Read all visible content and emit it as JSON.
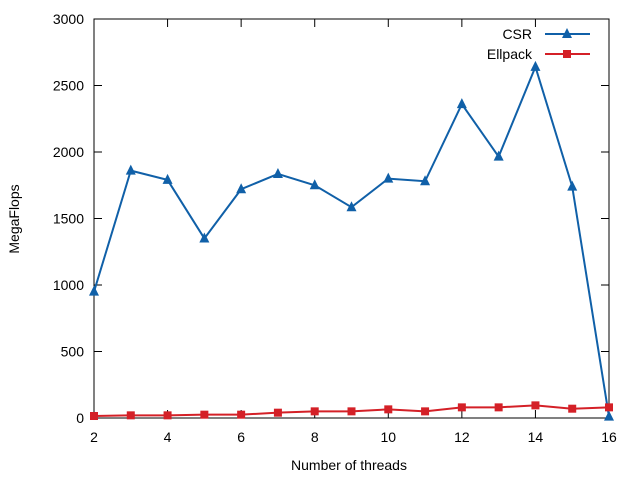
{
  "chart_data": {
    "type": "line",
    "title": "",
    "xlabel": "Number of threads",
    "ylabel": "MegaFlops",
    "xlim": [
      2,
      16
    ],
    "ylim": [
      0,
      3000
    ],
    "x_ticks": [
      2,
      4,
      6,
      8,
      10,
      12,
      14,
      16
    ],
    "y_ticks": [
      0,
      500,
      1000,
      1500,
      2000,
      2500,
      3000
    ],
    "grid": false,
    "legend_position": "top-right",
    "x": [
      2,
      3,
      4,
      5,
      6,
      7,
      8,
      9,
      10,
      11,
      12,
      13,
      14,
      15,
      16
    ],
    "series": [
      {
        "name": "CSR",
        "color": "#1060a8",
        "marker": "triangle",
        "values": [
          950,
          1860,
          1790,
          1350,
          1720,
          1835,
          1750,
          1585,
          1800,
          1780,
          2360,
          1965,
          2640,
          1740,
          10
        ]
      },
      {
        "name": "Ellpack",
        "color": "#d42027",
        "marker": "square",
        "values": [
          15,
          20,
          20,
          25,
          25,
          40,
          50,
          50,
          65,
          50,
          80,
          80,
          95,
          70,
          80
        ]
      }
    ]
  }
}
